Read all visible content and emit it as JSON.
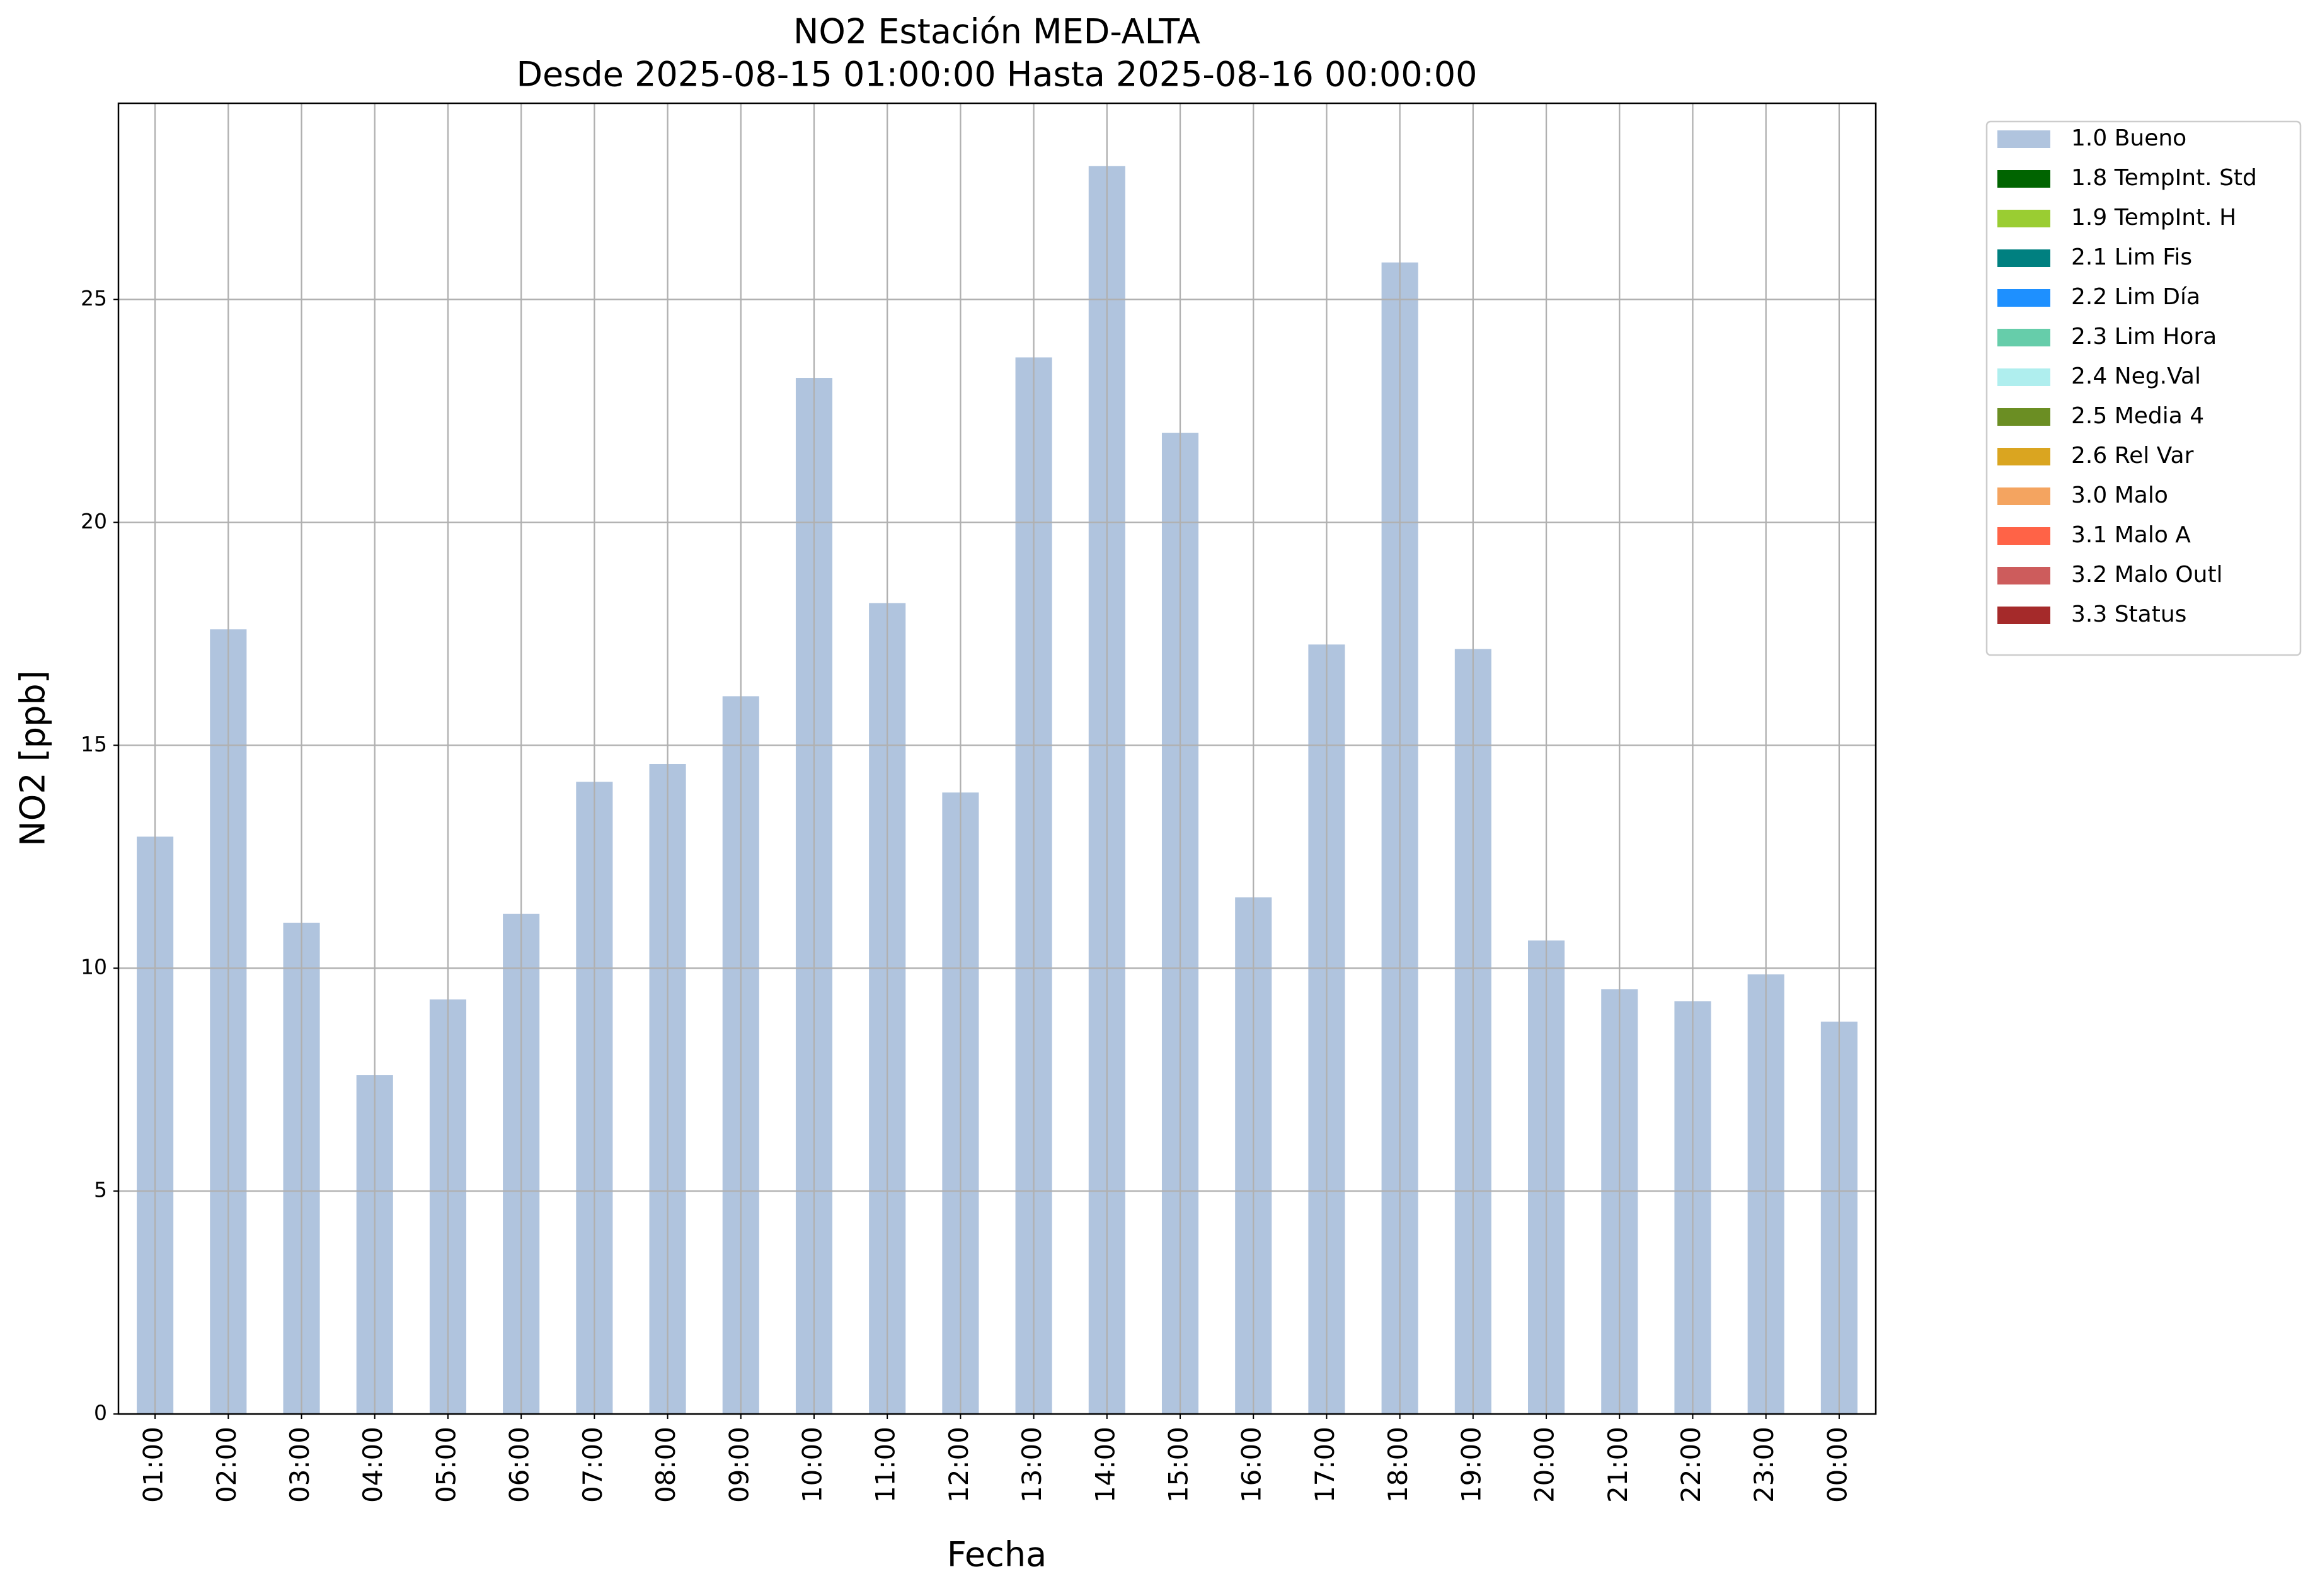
{
  "chart_data": {
    "type": "bar",
    "stacked": true,
    "title": "NO2 Estación MED-ALTA",
    "subtitle": "Desde 2025-08-15 01:00:00 Hasta 2025-08-16 00:00:00",
    "x_label": "Fecha",
    "y_label": "NO2 [ppb]",
    "categories": [
      "01:00",
      "02:00",
      "03:00",
      "04:00",
      "05:00",
      "06:00",
      "07:00",
      "08:00",
      "09:00",
      "10:00",
      "11:00",
      "12:00",
      "13:00",
      "14:00",
      "15:00",
      "16:00",
      "17:00",
      "18:00",
      "19:00",
      "20:00",
      "21:00",
      "22:00",
      "23:00",
      "00:00"
    ],
    "series": [
      {
        "name": "1.0 Bueno",
        "color": "#b0c4de",
        "values": [
          12.95,
          17.6,
          11.02,
          7.6,
          9.3,
          11.22,
          14.18,
          14.58,
          16.1,
          23.24,
          18.19,
          13.94,
          23.7,
          27.99,
          22.01,
          11.59,
          17.26,
          25.83,
          17.16,
          10.62,
          9.53,
          9.26,
          9.86,
          8.8
        ]
      },
      {
        "name": "1.8 TempInt. Std",
        "color": "#006400",
        "values": [
          null,
          null,
          null,
          null,
          null,
          null,
          null,
          null,
          null,
          null,
          null,
          null,
          null,
          null,
          null,
          null,
          null,
          null,
          null,
          null,
          null,
          null,
          null,
          null
        ]
      },
      {
        "name": "1.9 TempInt. H",
        "color": "#9acd32",
        "values": [
          null,
          null,
          null,
          null,
          null,
          null,
          null,
          null,
          null,
          null,
          null,
          null,
          null,
          null,
          null,
          null,
          null,
          null,
          null,
          null,
          null,
          null,
          null,
          null
        ]
      },
      {
        "name": "2.1 Lim Fis",
        "color": "#008080",
        "values": [
          null,
          null,
          null,
          null,
          null,
          null,
          null,
          null,
          null,
          null,
          null,
          null,
          null,
          null,
          null,
          null,
          null,
          null,
          null,
          null,
          null,
          null,
          null,
          null
        ]
      },
      {
        "name": "2.2 Lim Día",
        "color": "#1e90ff",
        "values": [
          null,
          null,
          null,
          null,
          null,
          null,
          null,
          null,
          null,
          null,
          null,
          null,
          null,
          null,
          null,
          null,
          null,
          null,
          null,
          null,
          null,
          null,
          null,
          null
        ]
      },
      {
        "name": "2.3 Lim Hora",
        "color": "#66cdaa",
        "values": [
          null,
          null,
          null,
          null,
          null,
          null,
          null,
          null,
          null,
          null,
          null,
          null,
          null,
          null,
          null,
          null,
          null,
          null,
          null,
          null,
          null,
          null,
          null,
          null
        ]
      },
      {
        "name": "2.4 Neg.Val",
        "color": "#afeeee",
        "values": [
          null,
          null,
          null,
          null,
          null,
          null,
          null,
          null,
          null,
          null,
          null,
          null,
          null,
          null,
          null,
          null,
          null,
          null,
          null,
          null,
          null,
          null,
          null,
          null
        ]
      },
      {
        "name": "2.5 Media 4",
        "color": "#6b8e23",
        "values": [
          null,
          null,
          null,
          null,
          null,
          null,
          null,
          null,
          null,
          null,
          null,
          null,
          null,
          null,
          null,
          null,
          null,
          null,
          null,
          null,
          null,
          null,
          null,
          null
        ]
      },
      {
        "name": "2.6 Rel Var",
        "color": "#daa520",
        "values": [
          null,
          null,
          null,
          null,
          null,
          null,
          null,
          null,
          null,
          null,
          null,
          null,
          null,
          null,
          null,
          null,
          null,
          null,
          null,
          null,
          null,
          null,
          null,
          null
        ]
      },
      {
        "name": "3.0 Malo",
        "color": "#f4a460",
        "values": [
          null,
          null,
          null,
          null,
          null,
          null,
          null,
          null,
          null,
          null,
          null,
          null,
          null,
          null,
          null,
          null,
          null,
          null,
          null,
          null,
          null,
          null,
          null,
          null
        ]
      },
      {
        "name": "3.1 Malo A",
        "color": "#ff6347",
        "values": [
          null,
          null,
          null,
          null,
          null,
          null,
          null,
          null,
          null,
          null,
          null,
          null,
          null,
          null,
          null,
          null,
          null,
          null,
          null,
          null,
          null,
          null,
          null,
          null
        ]
      },
      {
        "name": "3.2 Malo Outl",
        "color": "#cd5c5c",
        "values": [
          null,
          null,
          null,
          null,
          null,
          null,
          null,
          null,
          null,
          null,
          null,
          null,
          null,
          null,
          null,
          null,
          null,
          null,
          null,
          null,
          null,
          null,
          null,
          null
        ]
      },
      {
        "name": "3.3 Status",
        "color": "#a52a2a",
        "values": [
          null,
          null,
          null,
          null,
          null,
          null,
          null,
          null,
          null,
          null,
          null,
          null,
          null,
          null,
          null,
          null,
          null,
          null,
          null,
          null,
          null,
          null,
          null,
          null
        ]
      }
    ],
    "ylim": [
      0,
      29.4
    ],
    "yticks": [
      0,
      5,
      10,
      15,
      20,
      25
    ],
    "grid": true,
    "legend_position": "outside-right"
  }
}
